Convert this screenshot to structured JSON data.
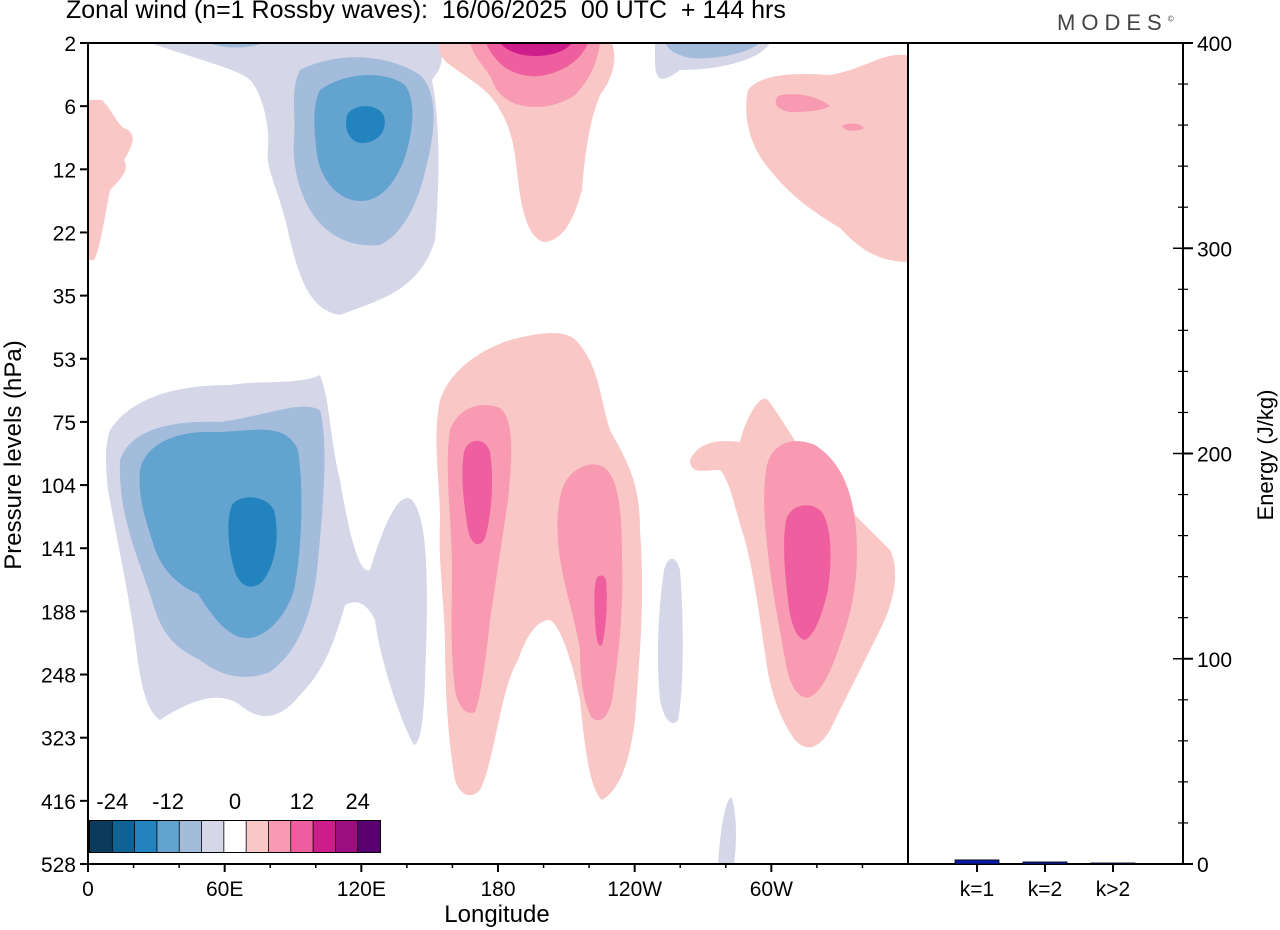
{
  "header": {
    "title": "Zonal wind (n=1 Rossby waves):  16/06/2025  00 UTC  + 144 hrs",
    "logo": "MODES"
  },
  "chart_data": [
    {
      "type": "heatmap",
      "xlabel": "Longitude",
      "ylabel": "Pressure levels (hPa)",
      "x_ticks": [
        "0",
        "60E",
        "120E",
        "180",
        "120W",
        "60W"
      ],
      "y_ticks": [
        "2",
        "6",
        "12",
        "22",
        "35",
        "53",
        "75",
        "104",
        "141",
        "188",
        "248",
        "323",
        "416",
        "528"
      ],
      "colorbar": {
        "labels": [
          "-24",
          "-12",
          "0",
          "12",
          "24"
        ],
        "colors": [
          "#0a3a5c",
          "#0f6394",
          "#2283bf",
          "#63a3cf",
          "#a3bcdb",
          "#d5d7e8",
          "#ffffff",
          "#f8c7c6",
          "#f89ab1",
          "#ef5f9f",
          "#cd1d8a",
          "#9b0d80",
          "#5a0070"
        ]
      },
      "regions": [
        {
          "level": 1,
          "value": -2
        },
        {
          "level": 2,
          "value": -6
        },
        {
          "level": 3,
          "value": -10
        },
        {
          "level": 4,
          "value": -14
        },
        {
          "level": 1,
          "value": 2
        },
        {
          "level": 2,
          "value": 6
        },
        {
          "level": 3,
          "value": 10
        },
        {
          "level": 4,
          "value": 14
        }
      ]
    },
    {
      "type": "bar",
      "categories": [
        "k=1",
        "k=2",
        "k>2"
      ],
      "values": [
        2,
        1,
        0.5
      ],
      "ylabel": "Energy (J/kg)",
      "ylim": [
        0,
        400
      ],
      "y_ticks": [
        "0",
        "100",
        "200",
        "300",
        "400"
      ],
      "colors": [
        "#0a1aa8",
        "#0a1aa8",
        "#0a1aa8"
      ]
    }
  ]
}
